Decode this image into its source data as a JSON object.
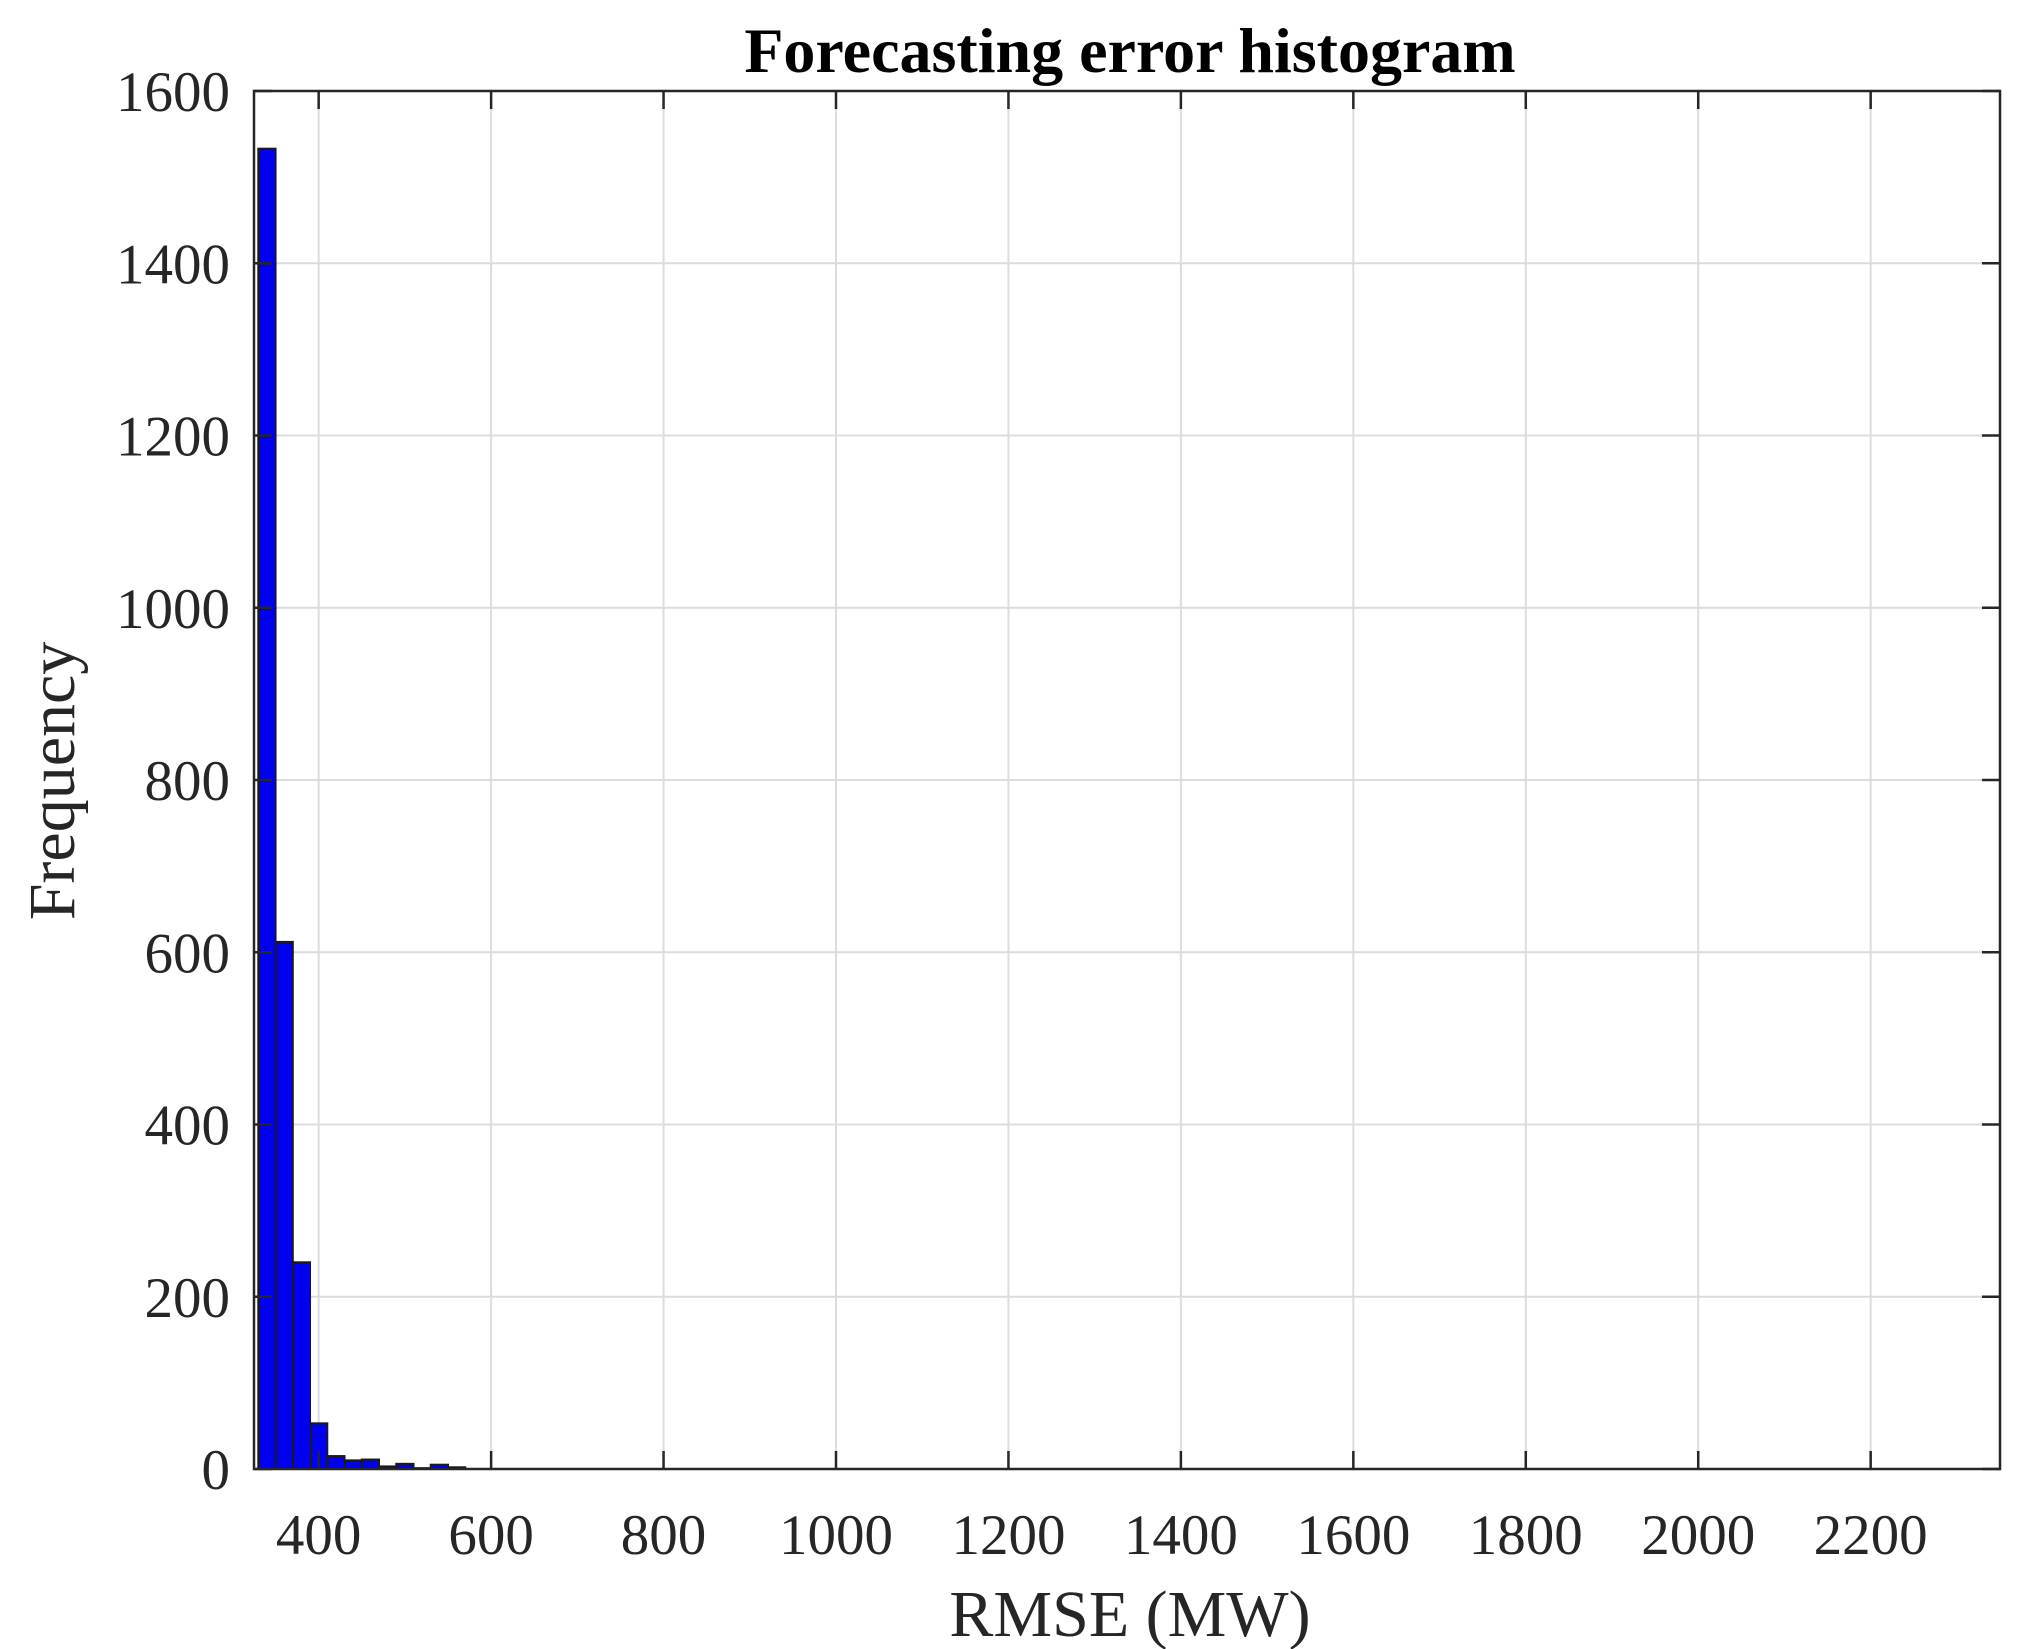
{
  "chart_data": {
    "type": "bar",
    "title": "Forecasting error histogram",
    "xlabel": "RMSE (MW)",
    "ylabel": "Frequency",
    "xlim": [
      325,
      2350
    ],
    "ylim": [
      0,
      1600
    ],
    "xticks": [
      400,
      600,
      800,
      1000,
      1200,
      1400,
      1600,
      1800,
      2000,
      2200
    ],
    "yticks": [
      0,
      200,
      400,
      600,
      800,
      1000,
      1200,
      1400,
      1600
    ],
    "grid": true,
    "bar_color": "#0000ee",
    "bin_width": 20,
    "bin_centers": [
      340,
      360,
      380,
      400,
      420,
      440,
      460,
      480,
      500,
      520,
      540,
      560
    ],
    "values": [
      1533,
      612,
      240,
      53,
      15,
      10,
      11,
      3,
      6,
      1,
      5,
      2
    ]
  }
}
